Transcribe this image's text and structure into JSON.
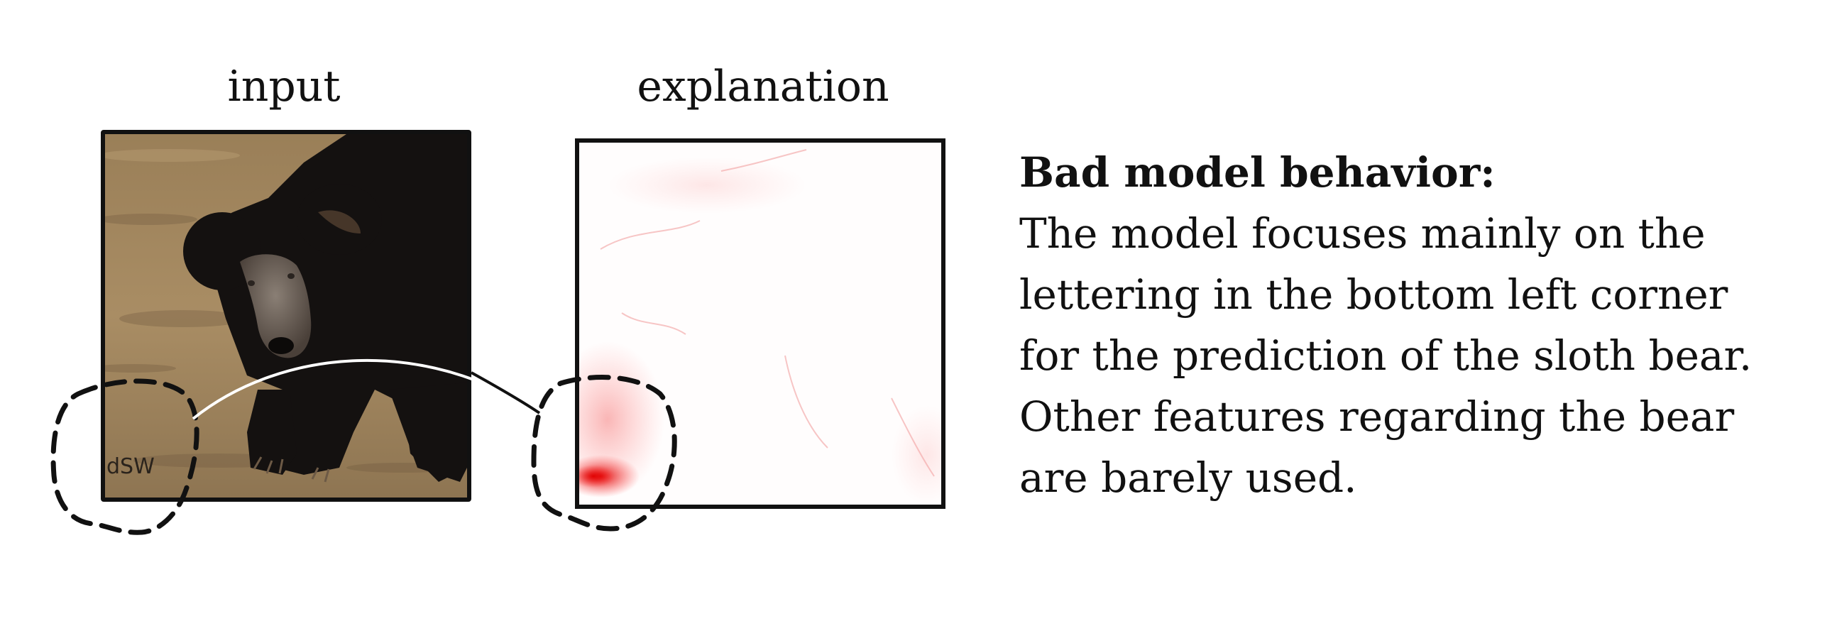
{
  "panels": {
    "input_title": "input",
    "explanation_title": "explanation"
  },
  "input_image": {
    "watermark_text": "dSW"
  },
  "description": {
    "heading": "Bad model behavior:",
    "lines": [
      "The model focuses mainly on the",
      "lettering in the bottom left corner",
      "for the prediction of the sloth bear.",
      "Other features regarding the bear",
      "are barely used."
    ]
  },
  "colors": {
    "frame": "#111111",
    "attribution": "#e00000",
    "ground": "#a0855d",
    "bear_fur": "#141110"
  }
}
